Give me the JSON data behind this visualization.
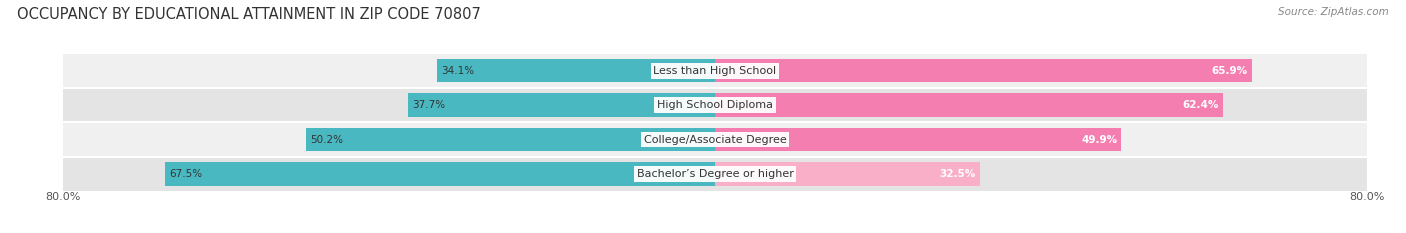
{
  "title": "OCCUPANCY BY EDUCATIONAL ATTAINMENT IN ZIP CODE 70807",
  "source": "Source: ZipAtlas.com",
  "categories": [
    "Less than High School",
    "High School Diploma",
    "College/Associate Degree",
    "Bachelor’s Degree or higher"
  ],
  "owner_values": [
    34.1,
    37.7,
    50.2,
    67.5
  ],
  "renter_values": [
    65.9,
    62.4,
    49.9,
    32.5
  ],
  "owner_color": "#4ab8c1",
  "renter_color": "#f47eb0",
  "renter_color_light": "#f9afc8",
  "row_bg_colors": [
    "#f0f0f0",
    "#e4e4e4"
  ],
  "x_min": -80.0,
  "x_max": 80.0,
  "bar_height": 0.68,
  "title_fontsize": 10.5,
  "label_fontsize": 8,
  "value_fontsize": 7.5,
  "source_fontsize": 7.5
}
